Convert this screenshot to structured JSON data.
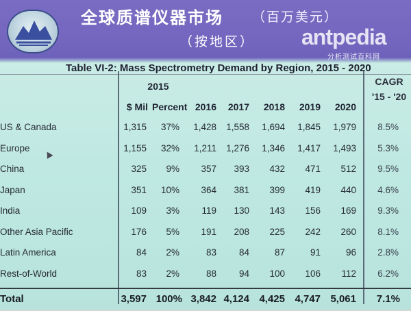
{
  "header": {
    "title_zh": "全球质谱仪器市场",
    "title_unit": "（百万美元）",
    "subtitle_zh": "（按地区）"
  },
  "watermark": {
    "brand": "antpedia",
    "tagline": "分析测试百科网"
  },
  "table": {
    "caption": "Table VI-2: Mass Spectrometry Demand by Region, 2015 - 2020",
    "year_group": "2015",
    "headers": {
      "mil": "$ Mil",
      "percent": "Percent",
      "y2016": "2016",
      "y2017": "2017",
      "y2018": "2018",
      "y2019": "2019",
      "y2020": "2020",
      "cagr_line1": "CAGR",
      "cagr_line2": "'15 - '20"
    },
    "rows": [
      {
        "region": "US & Canada",
        "mil": "1,315",
        "pct": "37%",
        "y2016": "1,428",
        "y2017": "1,558",
        "y2018": "1,694",
        "y2019": "1,845",
        "y2020": "1,979",
        "cagr": "8.5%"
      },
      {
        "region": "Europe",
        "mil": "1,155",
        "pct": "32%",
        "y2016": "1,211",
        "y2017": "1,276",
        "y2018": "1,346",
        "y2019": "1,417",
        "y2020": "1,493",
        "cagr": "5.3%"
      },
      {
        "region": "China",
        "mil": "325",
        "pct": "9%",
        "y2016": "357",
        "y2017": "393",
        "y2018": "432",
        "y2019": "471",
        "y2020": "512",
        "cagr": "9.5%"
      },
      {
        "region": "Japan",
        "mil": "351",
        "pct": "10%",
        "y2016": "364",
        "y2017": "381",
        "y2018": "399",
        "y2019": "419",
        "y2020": "440",
        "cagr": "4.6%"
      },
      {
        "region": "India",
        "mil": "109",
        "pct": "3%",
        "y2016": "119",
        "y2017": "130",
        "y2018": "143",
        "y2019": "156",
        "y2020": "169",
        "cagr": "9.3%"
      },
      {
        "region": "Other Asia Pacific",
        "mil": "176",
        "pct": "5%",
        "y2016": "191",
        "y2017": "208",
        "y2018": "225",
        "y2019": "242",
        "y2020": "260",
        "cagr": "8.1%"
      },
      {
        "region": "Latin America",
        "mil": "84",
        "pct": "2%",
        "y2016": "83",
        "y2017": "84",
        "y2018": "87",
        "y2019": "91",
        "y2020": "96",
        "cagr": "2.8%"
      },
      {
        "region": "Rest-of-World",
        "mil": "83",
        "pct": "2%",
        "y2016": "88",
        "y2017": "94",
        "y2018": "100",
        "y2019": "106",
        "y2020": "112",
        "cagr": "6.2%"
      }
    ],
    "total": {
      "region": "Total",
      "mil": "3,597",
      "pct": "100%",
      "y2016": "3,842",
      "y2017": "4,124",
      "y2018": "4,425",
      "y2019": "4,747",
      "y2020": "5,061",
      "cagr": "7.1%"
    }
  }
}
